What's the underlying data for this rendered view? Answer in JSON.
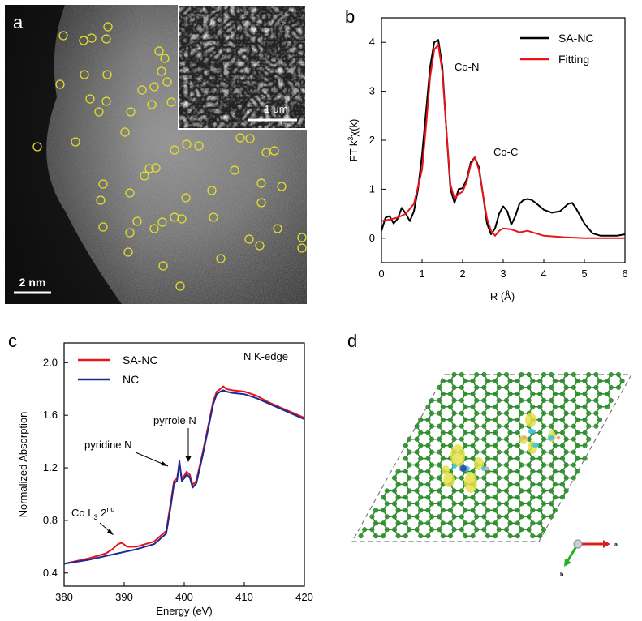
{
  "panels": {
    "a": {
      "label": "a",
      "scale_bar": "2 nm",
      "inset_scale_bar": "1 μm"
    },
    "b": {
      "label": "b"
    },
    "c": {
      "label": "c"
    },
    "d": {
      "label": "d",
      "axis_a": "a",
      "axis_b": "b"
    }
  },
  "chart_data": [
    {
      "panel": "b",
      "type": "line",
      "xlabel_main": "R (",
      "xlabel_unit": "Å",
      "xlabel_end": ")",
      "ylabel_main": "FT k",
      "ylabel_sup": "3",
      "ylabel_end": "χ(k)",
      "xlim": [
        0,
        6
      ],
      "ylim": [
        -0.5,
        4.5
      ],
      "xticks": [
        "0",
        "1",
        "2",
        "3",
        "4",
        "5",
        "6"
      ],
      "yticks": [
        "0",
        "1",
        "2",
        "3",
        "4"
      ],
      "legend_position": "top-right",
      "annotations": [
        "Co-N",
        "Co-C"
      ],
      "series": [
        {
          "name": "SA-NC",
          "color": "#000000",
          "x": [
            0,
            0.1,
            0.2,
            0.3,
            0.4,
            0.5,
            0.6,
            0.7,
            0.8,
            0.9,
            1.0,
            1.1,
            1.2,
            1.3,
            1.4,
            1.5,
            1.6,
            1.7,
            1.8,
            1.9,
            2.0,
            2.1,
            2.2,
            2.3,
            2.4,
            2.5,
            2.6,
            2.7,
            2.8,
            2.9,
            3.0,
            3.1,
            3.2,
            3.3,
            3.4,
            3.5,
            3.6,
            3.7,
            3.8,
            3.9,
            4.0,
            4.2,
            4.4,
            4.6,
            4.7,
            4.8,
            5.0,
            5.2,
            5.4,
            5.6,
            5.8,
            6.0
          ],
          "y": [
            0.15,
            0.42,
            0.45,
            0.3,
            0.4,
            0.62,
            0.5,
            0.35,
            0.55,
            1.0,
            1.7,
            2.6,
            3.5,
            4.0,
            4.05,
            3.5,
            2.2,
            1.0,
            0.72,
            1.0,
            1.02,
            1.2,
            1.55,
            1.65,
            1.45,
            0.9,
            0.3,
            0.08,
            0.2,
            0.5,
            0.65,
            0.55,
            0.28,
            0.45,
            0.7,
            0.78,
            0.8,
            0.78,
            0.72,
            0.65,
            0.58,
            0.52,
            0.55,
            0.7,
            0.72,
            0.6,
            0.3,
            0.1,
            0.05,
            0.05,
            0.05,
            0.08
          ]
        },
        {
          "name": "Fitting",
          "color": "#e8141a",
          "x": [
            0,
            0.2,
            0.4,
            0.6,
            0.8,
            1.0,
            1.1,
            1.2,
            1.3,
            1.4,
            1.5,
            1.6,
            1.7,
            1.8,
            1.9,
            2.0,
            2.1,
            2.2,
            2.3,
            2.4,
            2.5,
            2.6,
            2.7,
            2.8,
            2.9,
            3.0,
            3.2,
            3.4,
            3.6,
            3.8,
            4.0,
            4.5,
            5.0,
            5.5,
            6.0
          ],
          "y": [
            0.35,
            0.38,
            0.42,
            0.5,
            0.7,
            1.4,
            2.3,
            3.3,
            3.85,
            3.95,
            3.4,
            2.2,
            1.1,
            0.8,
            0.9,
            0.95,
            1.15,
            1.5,
            1.65,
            1.4,
            0.9,
            0.4,
            0.15,
            0.05,
            0.15,
            0.2,
            0.18,
            0.12,
            0.15,
            0.1,
            0.05,
            0.02,
            0.0,
            0.0,
            0.0
          ]
        }
      ]
    },
    {
      "panel": "c",
      "type": "line",
      "xlabel": "Energy (eV)",
      "ylabel": "Normalized Absorption",
      "xlim": [
        380,
        420
      ],
      "ylim": [
        0.3,
        2.15
      ],
      "xticks": [
        "380",
        "390",
        "400",
        "410",
        "420"
      ],
      "yticks": [
        "0.4",
        "0.8",
        "1.2",
        "1.6",
        "2.0"
      ],
      "legend_position": "top-left",
      "corner_text": "N K-edge",
      "annotations": [
        "pyridine N",
        "pyrrole N",
        "Co L",
        "3",
        " 2",
        "nd"
      ],
      "series": [
        {
          "name": "SA-NC",
          "color": "#e8141a",
          "x": [
            380,
            384,
            387,
            388,
            389,
            389.6,
            390.5,
            392,
            395,
            397,
            397.8,
            398.3,
            398.8,
            399.2,
            399.6,
            400.0,
            400.4,
            400.9,
            401.4,
            402,
            403,
            404,
            404.8,
            405.4,
            406,
            406.5,
            407,
            408,
            410,
            412,
            414,
            416,
            418,
            420
          ],
          "y": [
            0.47,
            0.51,
            0.55,
            0.58,
            0.62,
            0.63,
            0.6,
            0.6,
            0.64,
            0.72,
            0.95,
            1.1,
            1.12,
            1.22,
            1.12,
            1.14,
            1.17,
            1.15,
            1.07,
            1.1,
            1.3,
            1.52,
            1.7,
            1.78,
            1.8,
            1.82,
            1.8,
            1.79,
            1.78,
            1.75,
            1.7,
            1.66,
            1.62,
            1.58
          ]
        },
        {
          "name": "NC",
          "color": "#1c2a96",
          "x": [
            380,
            384,
            387,
            388,
            389,
            390,
            392,
            395,
            397,
            397.8,
            398.3,
            398.8,
            399.2,
            399.6,
            400.0,
            400.4,
            400.9,
            401.4,
            402,
            403,
            404,
            404.8,
            405.4,
            406,
            406.5,
            407,
            408,
            410,
            412,
            414,
            416,
            418,
            420
          ],
          "y": [
            0.47,
            0.5,
            0.53,
            0.54,
            0.55,
            0.56,
            0.58,
            0.62,
            0.7,
            0.92,
            1.08,
            1.1,
            1.25,
            1.1,
            1.12,
            1.15,
            1.13,
            1.05,
            1.08,
            1.28,
            1.5,
            1.68,
            1.76,
            1.78,
            1.79,
            1.78,
            1.77,
            1.76,
            1.73,
            1.69,
            1.65,
            1.61,
            1.57
          ]
        }
      ]
    }
  ]
}
